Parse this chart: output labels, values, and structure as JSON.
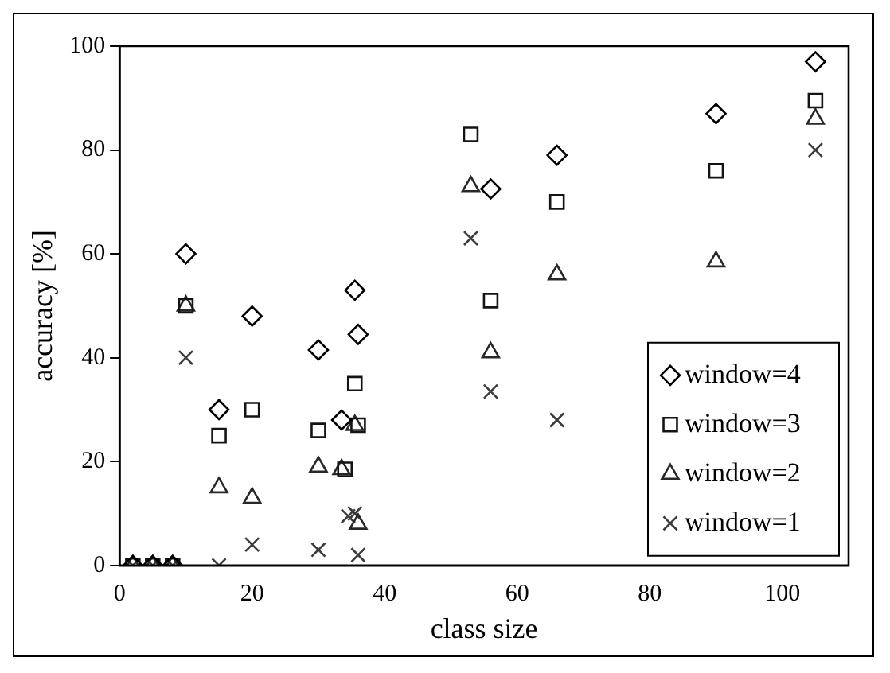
{
  "chart_data": {
    "type": "scatter",
    "xlabel": "class size",
    "ylabel": "accuracy [%]",
    "xlim": [
      0,
      110
    ],
    "xticks": [
      0,
      20,
      40,
      60,
      80,
      100
    ],
    "ylim": [
      0,
      100
    ],
    "yticks": [
      0,
      20,
      40,
      60,
      80,
      100
    ],
    "grid": false,
    "legend": "bottom right",
    "series": [
      {
        "name": "window=4",
        "color": "#000000",
        "marker": "diamond",
        "x": [
          2,
          5,
          8,
          10,
          15,
          20,
          30,
          33.5,
          35.5,
          36,
          56,
          66,
          90,
          105
        ],
        "values": [
          0,
          0,
          0,
          60,
          30,
          48,
          41.5,
          28,
          53,
          44.5,
          72.5,
          79,
          87,
          97
        ]
      },
      {
        "name": "window=3",
        "color": "#141414",
        "marker": "square",
        "x": [
          2,
          5,
          8,
          10,
          15,
          20,
          30,
          34,
          35.5,
          36,
          53,
          56,
          66,
          90,
          105
        ],
        "values": [
          0,
          0,
          0,
          50,
          25,
          30,
          26,
          18.5,
          35,
          27,
          83,
          51,
          70,
          76,
          89.5
        ]
      },
      {
        "name": "window=2",
        "color": "#282828",
        "marker": "triangle",
        "x": [
          2,
          5,
          8,
          10,
          15,
          20,
          30,
          33.5,
          35.5,
          36,
          53,
          56,
          66,
          90,
          105
        ],
        "values": [
          0,
          0,
          0,
          50,
          15,
          13,
          19,
          18.5,
          27,
          8,
          73,
          41,
          56,
          58.5,
          86
        ]
      },
      {
        "name": "window=1",
        "color": "#3c3c3c",
        "marker": "cross",
        "x": [
          2,
          5,
          8,
          10,
          15,
          20,
          30,
          34.5,
          35.5,
          36,
          53,
          56,
          66,
          105
        ],
        "values": [
          0,
          0,
          0,
          40,
          0,
          4,
          3,
          9.5,
          10,
          2,
          63,
          33.5,
          28,
          80
        ]
      }
    ]
  }
}
